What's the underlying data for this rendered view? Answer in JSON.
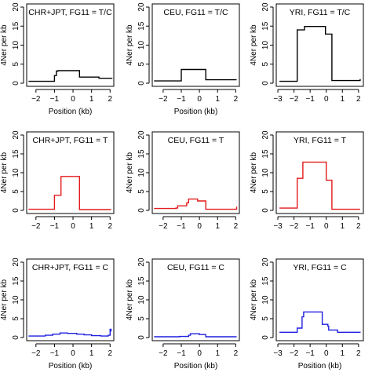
{
  "chart_data": [
    {
      "type": "line",
      "title": "CHR+JPT, FG11 = T/C",
      "xlabel": "Position (kb)",
      "ylabel": "4Ner per kb",
      "xlim": [
        -2.5,
        2.2
      ],
      "ylim": [
        0,
        20
      ],
      "xticks": [
        -2,
        -1,
        0,
        1,
        2
      ],
      "yticks": [
        0,
        5,
        10,
        15,
        20
      ],
      "color": "#000000",
      "series": [
        {
          "x": [
            -2.4,
            -1.05,
            -1.0,
            -0.9,
            -0.8,
            0.3,
            0.35,
            1.4,
            2.1
          ],
          "y": [
            0.5,
            0.5,
            2.0,
            3.2,
            3.3,
            3.3,
            1.6,
            1.3,
            1.2
          ]
        }
      ]
    },
    {
      "type": "line",
      "title": "CEU, FG11 = T/C",
      "xlabel": "Position (kb)",
      "ylabel": "4Ner per kb",
      "xlim": [
        -2.6,
        2.2
      ],
      "ylim": [
        0,
        20
      ],
      "xticks": [
        -2,
        -1,
        0,
        1,
        2
      ],
      "yticks": [
        0,
        5,
        10,
        15,
        20
      ],
      "color": "#000000",
      "series": [
        {
          "x": [
            -2.5,
            -1.05,
            -1.0,
            0.3,
            0.35,
            2.05
          ],
          "y": [
            0.6,
            0.6,
            3.6,
            3.6,
            0.9,
            0.9
          ]
        }
      ]
    },
    {
      "type": "line",
      "title": "YRI, FG11 = T/C",
      "xlabel": "",
      "ylabel": "4Ner per kb",
      "xlim": [
        -3.1,
        2.3
      ],
      "ylim": [
        0,
        20
      ],
      "xticks": [
        -3,
        -2,
        -1,
        0,
        1,
        2
      ],
      "yticks": [
        0,
        5,
        10,
        15,
        20
      ],
      "color": "#000000",
      "series": [
        {
          "x": [
            -2.9,
            -1.85,
            -1.8,
            -1.5,
            -1.35,
            -0.1,
            -0.05,
            0.3,
            0.35,
            1.0,
            2.1
          ],
          "y": [
            0.5,
            0.5,
            14.0,
            14.0,
            14.9,
            14.9,
            12.9,
            12.9,
            0.7,
            0.7,
            1.1
          ]
        }
      ]
    },
    {
      "type": "line",
      "title": "CHR+JPT, FG11 = T",
      "xlabel": "",
      "ylabel": "4Ner per kb",
      "xlim": [
        -2.5,
        2.2
      ],
      "ylim": [
        0,
        20
      ],
      "xticks": [
        -2,
        -1,
        0,
        1,
        2
      ],
      "yticks": [
        0,
        5,
        10,
        15,
        20
      ],
      "color": "#e31a1c",
      "series": [
        {
          "x": [
            -2.4,
            -1.05,
            -1.0,
            -0.75,
            -0.65,
            0.3,
            0.35,
            2.05
          ],
          "y": [
            0.3,
            0.3,
            4.0,
            4.0,
            9.0,
            9.0,
            0.2,
            0.2
          ]
        }
      ]
    },
    {
      "type": "line",
      "title": "CEU, FG11 = T",
      "xlabel": "",
      "ylabel": "4Ner per kb",
      "xlim": [
        -2.6,
        2.2
      ],
      "ylim": [
        0,
        20
      ],
      "xticks": [
        -2,
        -1,
        0,
        1,
        2
      ],
      "yticks": [
        0,
        5,
        10,
        15,
        20
      ],
      "color": "#e31a1c",
      "series": [
        {
          "x": [
            -2.5,
            -1.3,
            -1.2,
            -0.7,
            -0.6,
            -0.2,
            -0.1,
            0.3,
            0.35,
            1.9,
            2.05
          ],
          "y": [
            0.5,
            0.6,
            1.2,
            2.0,
            3.0,
            3.0,
            2.5,
            2.5,
            0.3,
            0.3,
            1.0
          ]
        }
      ]
    },
    {
      "type": "line",
      "title": "YRI, FG11 = T",
      "xlabel": "",
      "ylabel": "4Ner per kb",
      "xlim": [
        -3.1,
        2.3
      ],
      "ylim": [
        0,
        20
      ],
      "xticks": [
        -3,
        -2,
        -1,
        0,
        1,
        2
      ],
      "yticks": [
        0,
        5,
        10,
        15,
        20
      ],
      "color": "#e31a1c",
      "series": [
        {
          "x": [
            -2.9,
            -1.85,
            -1.8,
            -1.5,
            -1.45,
            -0.05,
            0.0,
            0.3,
            0.35,
            2.1
          ],
          "y": [
            0.6,
            0.6,
            8.5,
            8.5,
            12.8,
            12.8,
            8.0,
            8.0,
            0.3,
            0.3
          ]
        }
      ]
    },
    {
      "type": "line",
      "title": "CHR+JPT, FG11 = C",
      "xlabel": "Position (kb)",
      "ylabel": "4Ner per kb",
      "xlim": [
        -2.5,
        2.2
      ],
      "ylim": [
        0,
        20
      ],
      "xticks": [
        -2,
        -1,
        0,
        1,
        2
      ],
      "yticks": [
        0,
        5,
        10,
        15,
        20
      ],
      "color": "#1f1fe0",
      "series": [
        {
          "x": [
            -2.4,
            -1.5,
            -1.1,
            -0.7,
            -0.3,
            0.2,
            0.6,
            1.0,
            1.5,
            1.9,
            2.0,
            2.05
          ],
          "y": [
            0.4,
            0.6,
            0.9,
            1.2,
            1.1,
            0.9,
            0.7,
            0.5,
            0.4,
            0.6,
            2.2,
            1.6
          ]
        }
      ]
    },
    {
      "type": "line",
      "title": "CEU, FG11 = C",
      "xlabel": "Position (kb)",
      "ylabel": "4Ner per kb",
      "xlim": [
        -2.6,
        2.2
      ],
      "ylim": [
        0,
        20
      ],
      "xticks": [
        -2,
        -1,
        0,
        1,
        2
      ],
      "yticks": [
        0,
        5,
        10,
        15,
        20
      ],
      "color": "#1f1fe0",
      "series": [
        {
          "x": [
            -2.5,
            -1.2,
            -1.1,
            -0.6,
            -0.5,
            -0.1,
            0.0,
            0.3,
            0.35,
            2.05
          ],
          "y": [
            0.2,
            0.2,
            0.3,
            0.6,
            1.0,
            1.0,
            0.8,
            0.8,
            0.2,
            0.2
          ]
        }
      ]
    },
    {
      "type": "line",
      "title": "YRI, FG11 = C",
      "xlabel": "Position (kb)",
      "ylabel": "4Ner per kb",
      "xlim": [
        -3.1,
        2.3
      ],
      "ylim": [
        0,
        20
      ],
      "xticks": [
        -3,
        -2,
        -1,
        0,
        1,
        2
      ],
      "yticks": [
        0,
        5,
        10,
        15,
        20
      ],
      "color": "#1f1fe0",
      "series": [
        {
          "x": [
            -2.9,
            -1.85,
            -1.8,
            -1.5,
            -1.4,
            -0.3,
            -0.25,
            0.1,
            0.15,
            0.7,
            2.1
          ],
          "y": [
            1.4,
            1.4,
            2.5,
            5.5,
            6.8,
            6.8,
            3.5,
            3.0,
            2.0,
            1.4,
            1.3
          ]
        }
      ]
    }
  ]
}
